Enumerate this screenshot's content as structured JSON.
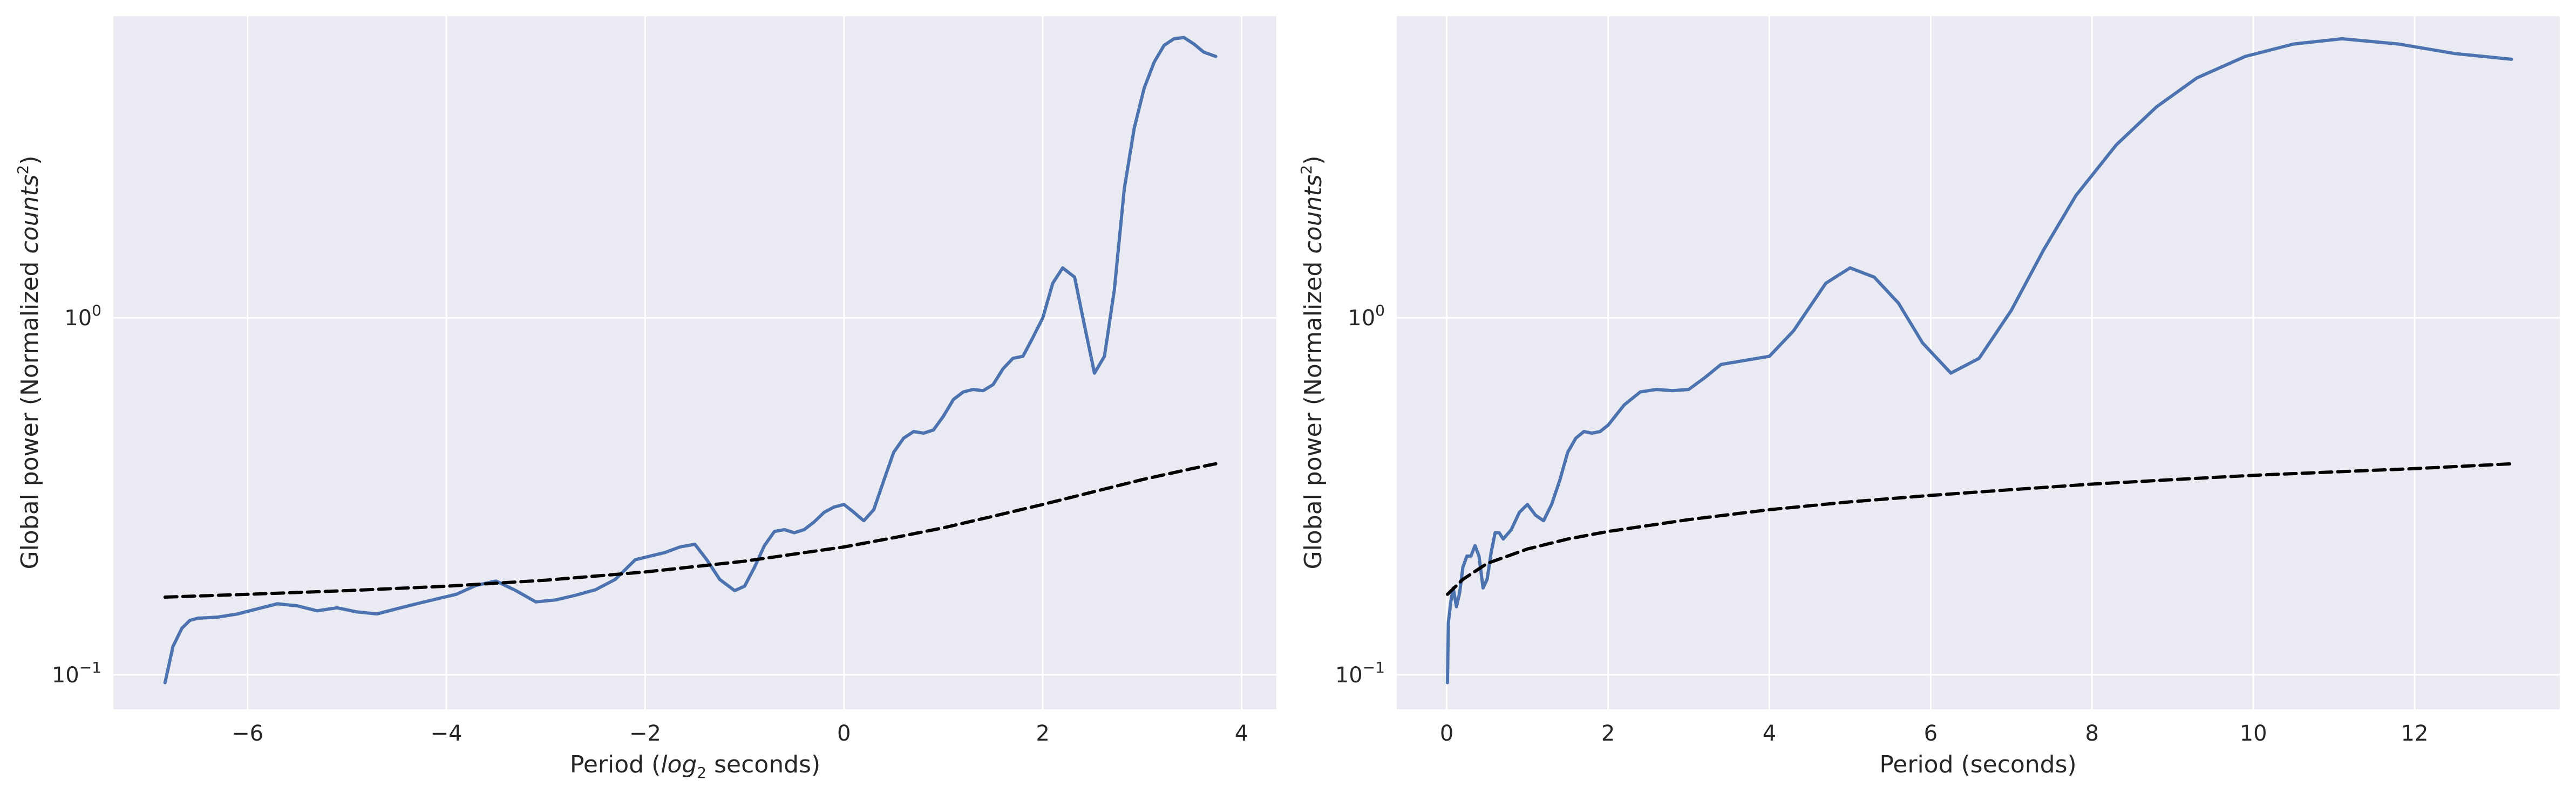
{
  "colors": {
    "plot_background": "#eaeaf2",
    "grid": "#ffffff",
    "series_line": "#4c72b0",
    "threshold_line": "#000000",
    "text": "#262626"
  },
  "chart_data": [
    {
      "type": "line",
      "yscale": "log",
      "xlabel": {
        "prefix": "Period (",
        "math": "log",
        "math_sub": "2",
        "suffix": " seconds)"
      },
      "ylabel": {
        "prefix": "Global power (Normalized ",
        "math": "counts",
        "math_sup": "2",
        "suffix": ")"
      },
      "xlim": [
        -7.35,
        4.35
      ],
      "ylim": [
        0.08,
        7.0
      ],
      "x_ticks": [
        -6,
        -4,
        -2,
        0,
        2,
        4
      ],
      "x_tick_labels": [
        "−6",
        "−4",
        "−2",
        "0",
        "2",
        "4"
      ],
      "y_ticks": [
        {
          "value": 0.1,
          "base": "10",
          "exp": "−1"
        },
        {
          "value": 1.0,
          "base": "10",
          "exp": "0"
        }
      ],
      "grid": true,
      "series": [
        {
          "style": "solid",
          "x": [
            -6.83,
            -6.75,
            -6.66,
            -6.58,
            -6.5,
            -6.3,
            -6.1,
            -5.9,
            -5.7,
            -5.5,
            -5.3,
            -5.1,
            -4.9,
            -4.7,
            -4.5,
            -4.3,
            -4.1,
            -3.9,
            -3.7,
            -3.5,
            -3.3,
            -3.1,
            -2.9,
            -2.7,
            -2.5,
            -2.3,
            -2.1,
            -1.95,
            -1.8,
            -1.65,
            -1.5,
            -1.38,
            -1.25,
            -1.1,
            -1.0,
            -0.9,
            -0.8,
            -0.7,
            -0.6,
            -0.5,
            -0.4,
            -0.3,
            -0.2,
            -0.1,
            0.0,
            0.1,
            0.2,
            0.3,
            0.4,
            0.5,
            0.6,
            0.7,
            0.8,
            0.9,
            1.0,
            1.1,
            1.2,
            1.3,
            1.4,
            1.5,
            1.6,
            1.7,
            1.8,
            1.9,
            2.0,
            2.1,
            2.2,
            2.32,
            2.42,
            2.52,
            2.62,
            2.72,
            2.82,
            2.92,
            3.02,
            3.12,
            3.22,
            3.32,
            3.42,
            3.52,
            3.62,
            3.74
          ],
          "y": [
            0.095,
            0.12,
            0.135,
            0.142,
            0.144,
            0.145,
            0.148,
            0.153,
            0.158,
            0.156,
            0.151,
            0.154,
            0.15,
            0.148,
            0.153,
            0.158,
            0.163,
            0.168,
            0.178,
            0.183,
            0.172,
            0.16,
            0.162,
            0.167,
            0.173,
            0.185,
            0.21,
            0.215,
            0.22,
            0.228,
            0.232,
            0.21,
            0.185,
            0.172,
            0.177,
            0.2,
            0.23,
            0.252,
            0.255,
            0.25,
            0.255,
            0.268,
            0.285,
            0.295,
            0.3,
            0.285,
            0.27,
            0.29,
            0.35,
            0.42,
            0.46,
            0.48,
            0.475,
            0.485,
            0.53,
            0.59,
            0.62,
            0.63,
            0.625,
            0.65,
            0.72,
            0.77,
            0.78,
            0.88,
            1.0,
            1.25,
            1.38,
            1.3,
            0.95,
            0.7,
            0.78,
            1.2,
            2.3,
            3.4,
            4.4,
            5.2,
            5.8,
            6.05,
            6.1,
            5.85,
            5.55,
            5.4
          ]
        },
        {
          "style": "dashed",
          "x": [
            -6.83,
            -6.0,
            -5.0,
            -4.0,
            -3.0,
            -2.0,
            -1.0,
            0.0,
            0.5,
            1.0,
            1.5,
            2.0,
            2.5,
            3.0,
            3.5,
            3.74
          ],
          "y": [
            0.165,
            0.168,
            0.172,
            0.177,
            0.184,
            0.194,
            0.208,
            0.228,
            0.242,
            0.258,
            0.278,
            0.3,
            0.325,
            0.352,
            0.378,
            0.39
          ]
        }
      ]
    },
    {
      "type": "line",
      "yscale": "log",
      "xlabel": {
        "prefix": "Period (seconds)",
        "math": "",
        "math_sub": "",
        "suffix": ""
      },
      "ylabel": {
        "prefix": "Global power (Normalized ",
        "math": "counts",
        "math_sup": "2",
        "suffix": ")"
      },
      "xlim": [
        -0.62,
        13.8
      ],
      "ylim": [
        0.08,
        7.0
      ],
      "x_ticks": [
        0,
        2,
        4,
        6,
        8,
        10,
        12
      ],
      "x_tick_labels": [
        "0",
        "2",
        "4",
        "6",
        "8",
        "10",
        "12"
      ],
      "y_ticks": [
        {
          "value": 0.1,
          "base": "10",
          "exp": "−1"
        },
        {
          "value": 1.0,
          "base": "10",
          "exp": "0"
        }
      ],
      "grid": true,
      "series": [
        {
          "style": "solid",
          "x": [
            0.009,
            0.02,
            0.05,
            0.08,
            0.12,
            0.16,
            0.2,
            0.25,
            0.3,
            0.35,
            0.4,
            0.45,
            0.5,
            0.55,
            0.6,
            0.65,
            0.7,
            0.8,
            0.9,
            1.0,
            1.1,
            1.2,
            1.3,
            1.4,
            1.5,
            1.6,
            1.7,
            1.8,
            1.9,
            2.0,
            2.2,
            2.4,
            2.6,
            2.8,
            3.0,
            3.2,
            3.4,
            3.7,
            4.0,
            4.3,
            4.7,
            5.0,
            5.3,
            5.6,
            5.9,
            6.25,
            6.6,
            7.0,
            7.4,
            7.8,
            8.3,
            8.8,
            9.3,
            9.9,
            10.5,
            11.1,
            11.8,
            12.5,
            13.2
          ],
          "y": [
            0.095,
            0.14,
            0.16,
            0.175,
            0.155,
            0.17,
            0.2,
            0.215,
            0.215,
            0.23,
            0.215,
            0.175,
            0.185,
            0.22,
            0.25,
            0.25,
            0.24,
            0.255,
            0.285,
            0.3,
            0.28,
            0.27,
            0.3,
            0.35,
            0.42,
            0.46,
            0.48,
            0.475,
            0.48,
            0.5,
            0.57,
            0.62,
            0.63,
            0.625,
            0.63,
            0.68,
            0.74,
            0.76,
            0.78,
            0.92,
            1.25,
            1.38,
            1.3,
            1.1,
            0.85,
            0.7,
            0.77,
            1.05,
            1.55,
            2.2,
            3.05,
            3.9,
            4.7,
            5.4,
            5.85,
            6.05,
            5.85,
            5.5,
            5.3
          ]
        },
        {
          "style": "dashed",
          "x": [
            0.009,
            0.2,
            0.5,
            1.0,
            1.5,
            2.0,
            3.0,
            4.0,
            5.0,
            6.0,
            7.0,
            8.0,
            9.0,
            10.0,
            11.0,
            12.0,
            13.2
          ],
          "y": [
            0.168,
            0.185,
            0.205,
            0.225,
            0.24,
            0.252,
            0.272,
            0.29,
            0.305,
            0.318,
            0.33,
            0.342,
            0.352,
            0.362,
            0.37,
            0.378,
            0.39
          ]
        }
      ]
    }
  ]
}
